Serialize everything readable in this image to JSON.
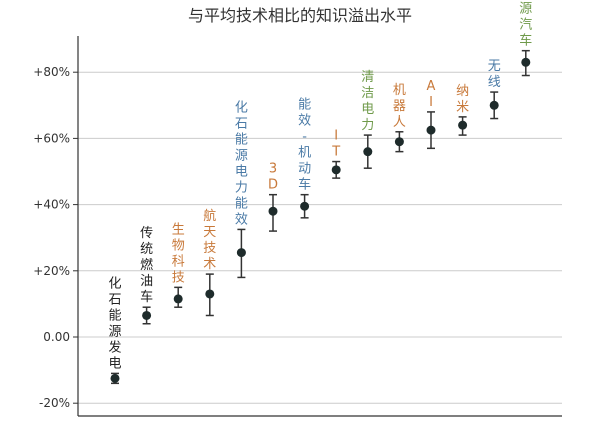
{
  "chart_data": {
    "type": "scatter",
    "title": "与平均技术相比的知识溢出水平",
    "xlabel": "",
    "ylabel": "",
    "ylim": [
      -20,
      90
    ],
    "yticks": [
      -20,
      0,
      20,
      40,
      60,
      80
    ],
    "ytick_labels": [
      "-20%",
      "0.00",
      "+20%",
      "+40%",
      "+60%",
      "+80%"
    ],
    "grid": true,
    "colors": {
      "black": "#222222",
      "orange": "#c8793a",
      "blue": "#4a7aa6",
      "green": "#6f9a4a",
      "point": "#1e2b2b",
      "grid": "#cccccc",
      "axis": "#333333"
    },
    "points": [
      {
        "category": "化石能源发电",
        "value": -12.5,
        "low": -14,
        "high": -11,
        "color": "black"
      },
      {
        "category": "传统燃油车",
        "value": 6.5,
        "low": 4,
        "high": 9,
        "color": "black"
      },
      {
        "category": "生物科技",
        "value": 11.5,
        "low": 9,
        "high": 15,
        "color": "orange"
      },
      {
        "category": "航天技术",
        "value": 13,
        "low": 6.5,
        "high": 19,
        "color": "orange"
      },
      {
        "category": "化石能源电力能效",
        "value": 25.5,
        "low": 18,
        "high": 32.5,
        "color": "blue"
      },
      {
        "category": "3D",
        "value": 38,
        "low": 32,
        "high": 43,
        "color": "orange"
      },
      {
        "category": "能效-机动车",
        "value": 39.5,
        "low": 36,
        "high": 43,
        "color": "blue"
      },
      {
        "category": "IT",
        "value": 50.5,
        "low": 48,
        "high": 53,
        "color": "orange"
      },
      {
        "category": "清洁电力",
        "value": 56,
        "low": 51,
        "high": 61,
        "color": "green"
      },
      {
        "category": "机器人",
        "value": 59,
        "low": 56,
        "high": 62,
        "color": "orange"
      },
      {
        "category": "AI",
        "value": 62.5,
        "low": 57,
        "high": 68,
        "color": "orange"
      },
      {
        "category": "纳米",
        "value": 64,
        "low": 61,
        "high": 66.5,
        "color": "orange"
      },
      {
        "category": "无线",
        "value": 70,
        "low": 66,
        "high": 74,
        "color": "blue"
      },
      {
        "category": "新能源汽车",
        "value": 83,
        "low": 79,
        "high": 86.5,
        "color": "green"
      }
    ]
  }
}
